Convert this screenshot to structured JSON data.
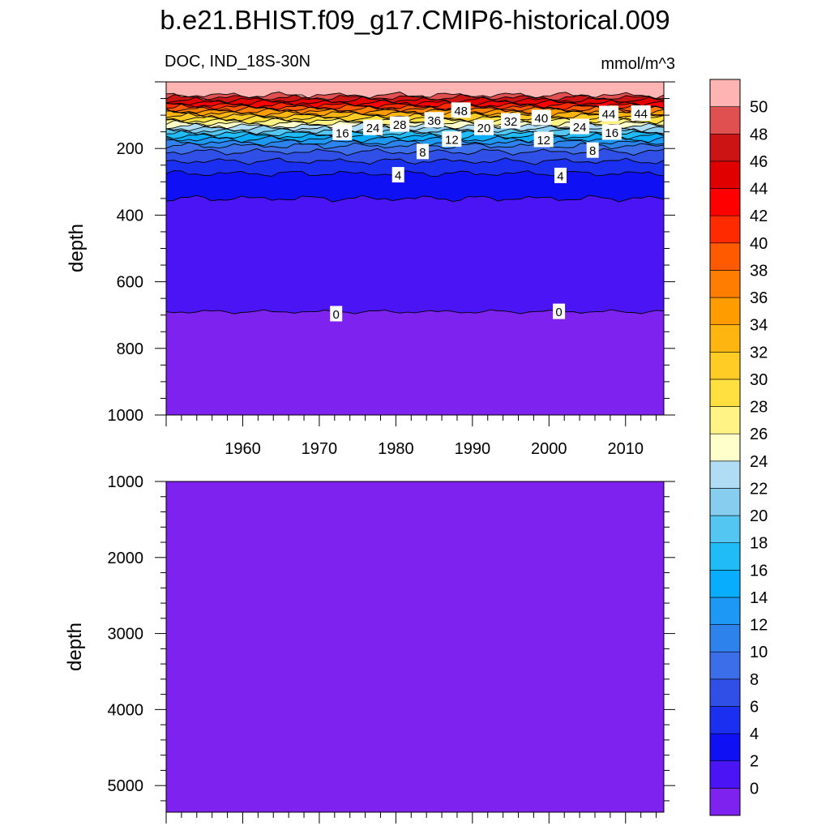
{
  "chart_data": [
    {
      "type": "heatmap",
      "title": "b.e21.BHIST.f09_g17.CMIP6-historical.009",
      "left_label": "DOC, IND_18S-30N",
      "right_label": "mmol/m^3",
      "xlabel": "",
      "ylabel": "depth",
      "xlim": [
        1950,
        2015
      ],
      "ylim": [
        1000,
        0
      ],
      "x_ticks": [
        1960,
        1970,
        1980,
        1990,
        2000,
        2010
      ],
      "y_ticks": [
        200,
        400,
        600,
        800,
        1000
      ],
      "contour_levels": [
        0,
        2,
        4,
        6,
        8,
        10,
        12,
        14,
        16,
        18,
        20,
        22,
        24,
        26,
        28,
        30,
        32,
        34,
        36,
        38,
        40,
        42,
        44,
        46,
        48,
        50
      ],
      "level_depths": [
        690,
        350,
        275,
        238,
        210,
        192,
        182,
        172,
        163,
        155,
        148,
        140,
        133,
        125,
        117,
        110,
        102,
        95,
        88,
        82,
        76,
        70,
        63,
        55,
        47,
        40
      ],
      "contour_labels": [
        {
          "x": 1972.2,
          "y": 697,
          "text": "0"
        },
        {
          "x": 2001.3,
          "y": 690,
          "text": "0"
        },
        {
          "x": 1980.3,
          "y": 280,
          "text": "4"
        },
        {
          "x": 2001.5,
          "y": 282,
          "text": "4"
        },
        {
          "x": 1983.5,
          "y": 210,
          "text": "8"
        },
        {
          "x": 2005.7,
          "y": 206,
          "text": "8"
        },
        {
          "x": 1987.3,
          "y": 173,
          "text": "12"
        },
        {
          "x": 1999.3,
          "y": 174,
          "text": "12"
        },
        {
          "x": 1973.0,
          "y": 153,
          "text": "16"
        },
        {
          "x": 2008.2,
          "y": 152,
          "text": "16"
        },
        {
          "x": 1991.5,
          "y": 138,
          "text": "20"
        },
        {
          "x": 1977.0,
          "y": 138,
          "text": "24"
        },
        {
          "x": 2004.0,
          "y": 135,
          "text": "24"
        },
        {
          "x": 1980.5,
          "y": 128,
          "text": "28"
        },
        {
          "x": 1995.0,
          "y": 118,
          "text": "32"
        },
        {
          "x": 1985.0,
          "y": 115,
          "text": "36"
        },
        {
          "x": 1999.0,
          "y": 108,
          "text": "40"
        },
        {
          "x": 2007.8,
          "y": 96,
          "text": "44"
        },
        {
          "x": 2012.0,
          "y": 95,
          "text": "44"
        },
        {
          "x": 1988.5,
          "y": 86,
          "text": "48"
        }
      ]
    },
    {
      "type": "heatmap",
      "title": "",
      "xlabel": "",
      "ylabel": "depth",
      "xlim": [
        1950,
        2015
      ],
      "ylim": [
        5350,
        1000
      ],
      "y_ticks": [
        1000,
        2000,
        3000,
        4000,
        5000
      ],
      "fill_value_range": "0"
    }
  ],
  "colorbar": {
    "labels": [
      "0",
      "2",
      "4",
      "6",
      "8",
      "10",
      "12",
      "14",
      "16",
      "18",
      "20",
      "22",
      "24",
      "26",
      "28",
      "30",
      "32",
      "34",
      "36",
      "38",
      "40",
      "42",
      "44",
      "46",
      "48",
      "50"
    ],
    "colors_bottom_to_top": [
      "#7e22f0",
      "#4b14f5",
      "#1010f5",
      "#1b2ff0",
      "#2f4fe6",
      "#3b6ee8",
      "#2e82ec",
      "#1e98f5",
      "#08aefd",
      "#1fbcf8",
      "#54c6f2",
      "#87cdf0",
      "#b0dcf4",
      "#ffffcc",
      "#fff386",
      "#ffe040",
      "#ffcc26",
      "#ffb50f",
      "#ff9c00",
      "#ff7d00",
      "#ff5a00",
      "#ff2a00",
      "#ff0000",
      "#e00000",
      "#cc1414",
      "#e05050",
      "#ffb4b4"
    ]
  }
}
